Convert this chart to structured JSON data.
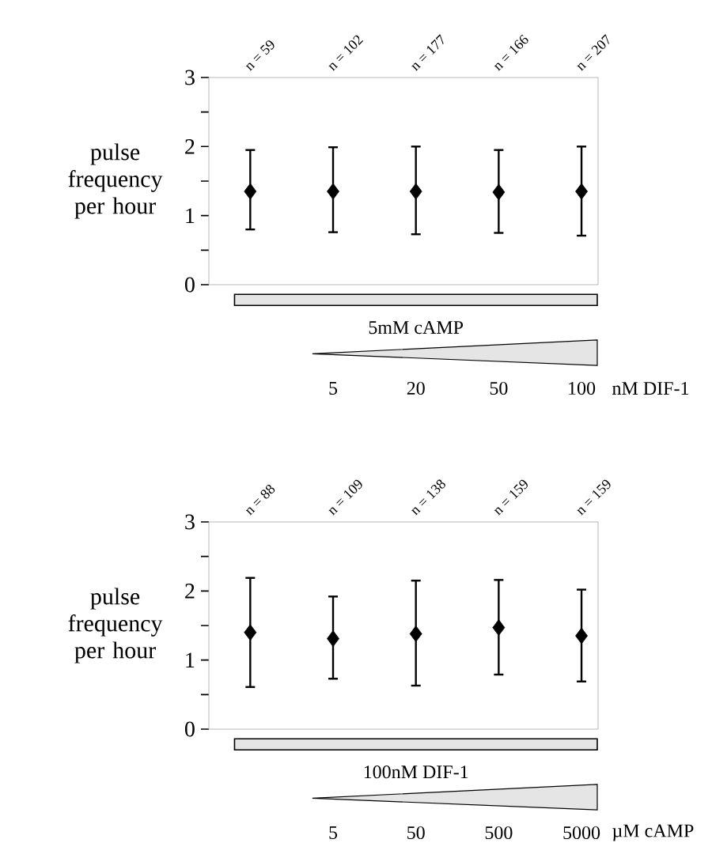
{
  "chart_data": [
    {
      "type": "scatter",
      "ylabel": "pulse frequency per hour",
      "xlabel": "nM DIF-1",
      "categories": [
        null,
        "5",
        "20",
        "50",
        "100"
      ],
      "values": [
        1.35,
        1.35,
        1.35,
        1.34,
        1.35
      ],
      "errors": [
        [
          0.8,
          1.95
        ],
        [
          0.76,
          1.99
        ],
        [
          0.73,
          2.0
        ],
        [
          0.75,
          1.95
        ],
        [
          0.71,
          2.0
        ]
      ],
      "color": "#000000",
      "marker": "diamond",
      "grid": false,
      "ylim": [
        0,
        3
      ],
      "yticks": [
        0,
        {
          "value": 0.5,
          "label": null
        },
        1,
        {
          "value": 1.5,
          "label": null
        },
        2,
        {
          "value": 2.5,
          "label": null
        },
        3
      ],
      "annotations": [
        "n = 59",
        "n = 102",
        "n = 177",
        "n = 166",
        "n = 207",
        "5mM cAMP"
      ]
    },
    {
      "type": "scatter",
      "ylabel": "pulse frequency per hour",
      "xlabel": "µM cAMP",
      "categories": [
        null,
        "5",
        "50",
        "500",
        "5000"
      ],
      "values": [
        1.4,
        1.31,
        1.38,
        1.47,
        1.35
      ],
      "errors": [
        [
          0.61,
          2.19
        ],
        [
          0.73,
          1.92
        ],
        [
          0.63,
          2.15
        ],
        [
          0.79,
          2.16
        ],
        [
          0.69,
          2.02
        ]
      ],
      "color": "#000000",
      "marker": "diamond",
      "grid": false,
      "ylim": [
        0,
        3
      ],
      "yticks": [
        0,
        {
          "value": 0.5,
          "label": null
        },
        1,
        {
          "value": 1.5,
          "label": null
        },
        2,
        {
          "value": 2.5,
          "label": null
        },
        3
      ],
      "annotations": [
        "n = 88",
        "n = 109",
        "n = 138",
        "n = 159",
        "n = 159",
        "100nM DIF-1"
      ]
    }
  ]
}
